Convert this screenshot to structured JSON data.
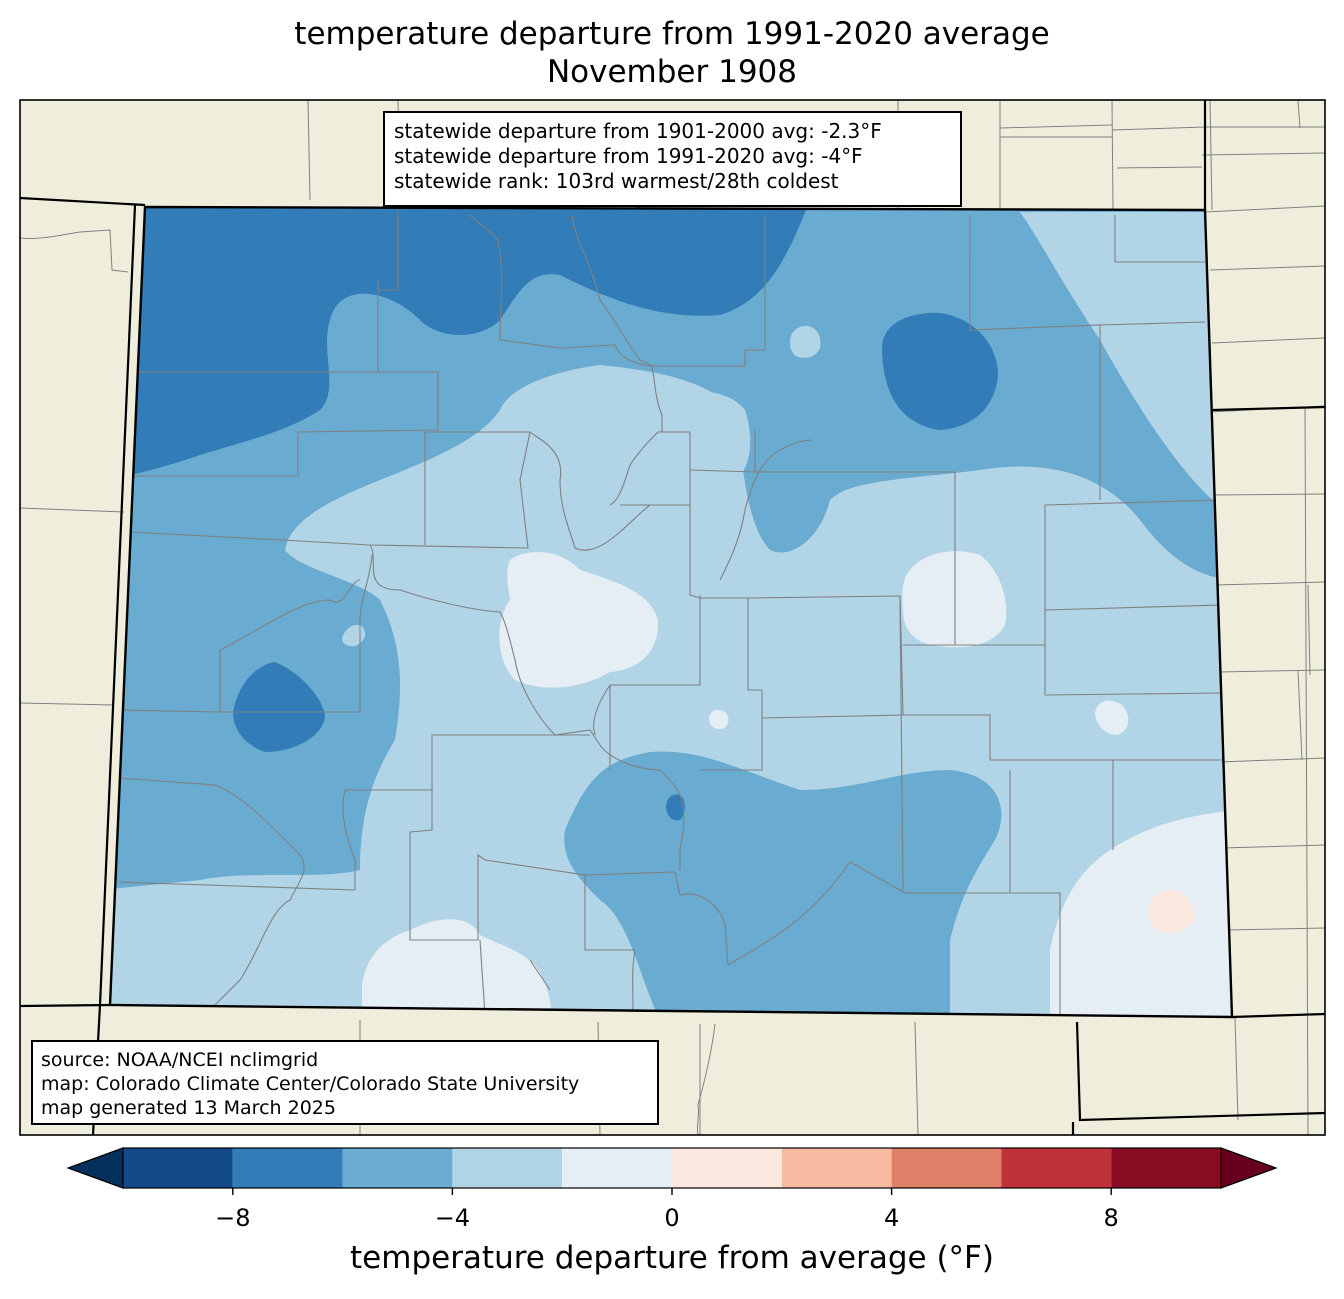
{
  "title": {
    "line1": "temperature departure from 1991-2020 average",
    "line2": "November 1908"
  },
  "stats": {
    "line1": "statewide departure from 1901-2000 avg: -2.3°F",
    "line2": "statewide departure from 1991-2020 avg: -4°F",
    "line3": "statewide rank: 103rd warmest/28th coldest"
  },
  "source": {
    "line1": "source: NOAA/NCEI nclimgrid",
    "line2": "map: Colorado Climate Center/Colorado State University",
    "line3": "map generated 13 March 2025"
  },
  "colorbar": {
    "label": "temperature departure from average (°F)",
    "ticks": [
      "−8",
      "−4",
      "0",
      "4",
      "8"
    ],
    "tick_values": [
      -8,
      -4,
      0,
      4,
      8
    ],
    "bins": [
      {
        "min": -10,
        "max": -8,
        "color": "#134b87"
      },
      {
        "min": -8,
        "max": -6,
        "color": "#327cb8"
      },
      {
        "min": -6,
        "max": -4,
        "color": "#69abd1"
      },
      {
        "min": -4,
        "max": -2,
        "color": "#b1d4e7"
      },
      {
        "min": -2,
        "max": 0,
        "color": "#e5eef4"
      },
      {
        "min": 0,
        "max": 2,
        "color": "#fae7dd"
      },
      {
        "min": 2,
        "max": 4,
        "color": "#f8bba1"
      },
      {
        "min": 4,
        "max": 6,
        "color": "#e07f68"
      },
      {
        "min": 6,
        "max": 8,
        "color": "#be333a"
      },
      {
        "min": 8,
        "max": 10,
        "color": "#880a23"
      }
    ],
    "extend_low_color": "#06305c",
    "extend_high_color": "#67001f"
  },
  "map_colors": {
    "background_land": "#efeedc",
    "county_lines": "#808080",
    "state_lines": "#000000"
  }
}
